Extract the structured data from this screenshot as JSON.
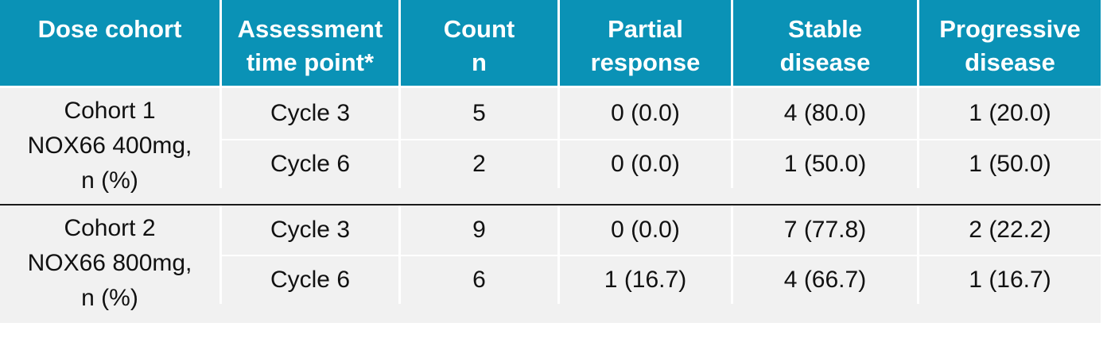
{
  "table": {
    "headers": [
      [
        "Dose cohort"
      ],
      [
        "Assessment",
        "time point*"
      ],
      [
        "Count",
        "n"
      ],
      [
        "Partial",
        "response"
      ],
      [
        "Stable",
        "disease"
      ],
      [
        "Progressive",
        "disease"
      ]
    ],
    "groups": [
      {
        "cohort": [
          "Cohort 1",
          "NOX66 400mg,",
          "n (%)"
        ],
        "rows": [
          [
            "Cycle 3",
            "5",
            "0 (0.0)",
            "4 (80.0)",
            "1 (20.0)"
          ],
          [
            "Cycle 6",
            "2",
            "0 (0.0)",
            "1 (50.0)",
            "1 (50.0)"
          ]
        ]
      },
      {
        "cohort": [
          "Cohort 2",
          "NOX66 800mg,",
          "n (%)"
        ],
        "rows": [
          [
            "Cycle 3",
            "9",
            "0 (0.0)",
            "7 (77.8)",
            "2 (22.2)"
          ],
          [
            "Cycle 6",
            "6",
            "1 (16.7)",
            "4 (66.7)",
            "1 (16.7)"
          ]
        ]
      }
    ]
  },
  "colors": {
    "header_bg": "#0a92b6",
    "row_bg": "#f1f1f1"
  }
}
